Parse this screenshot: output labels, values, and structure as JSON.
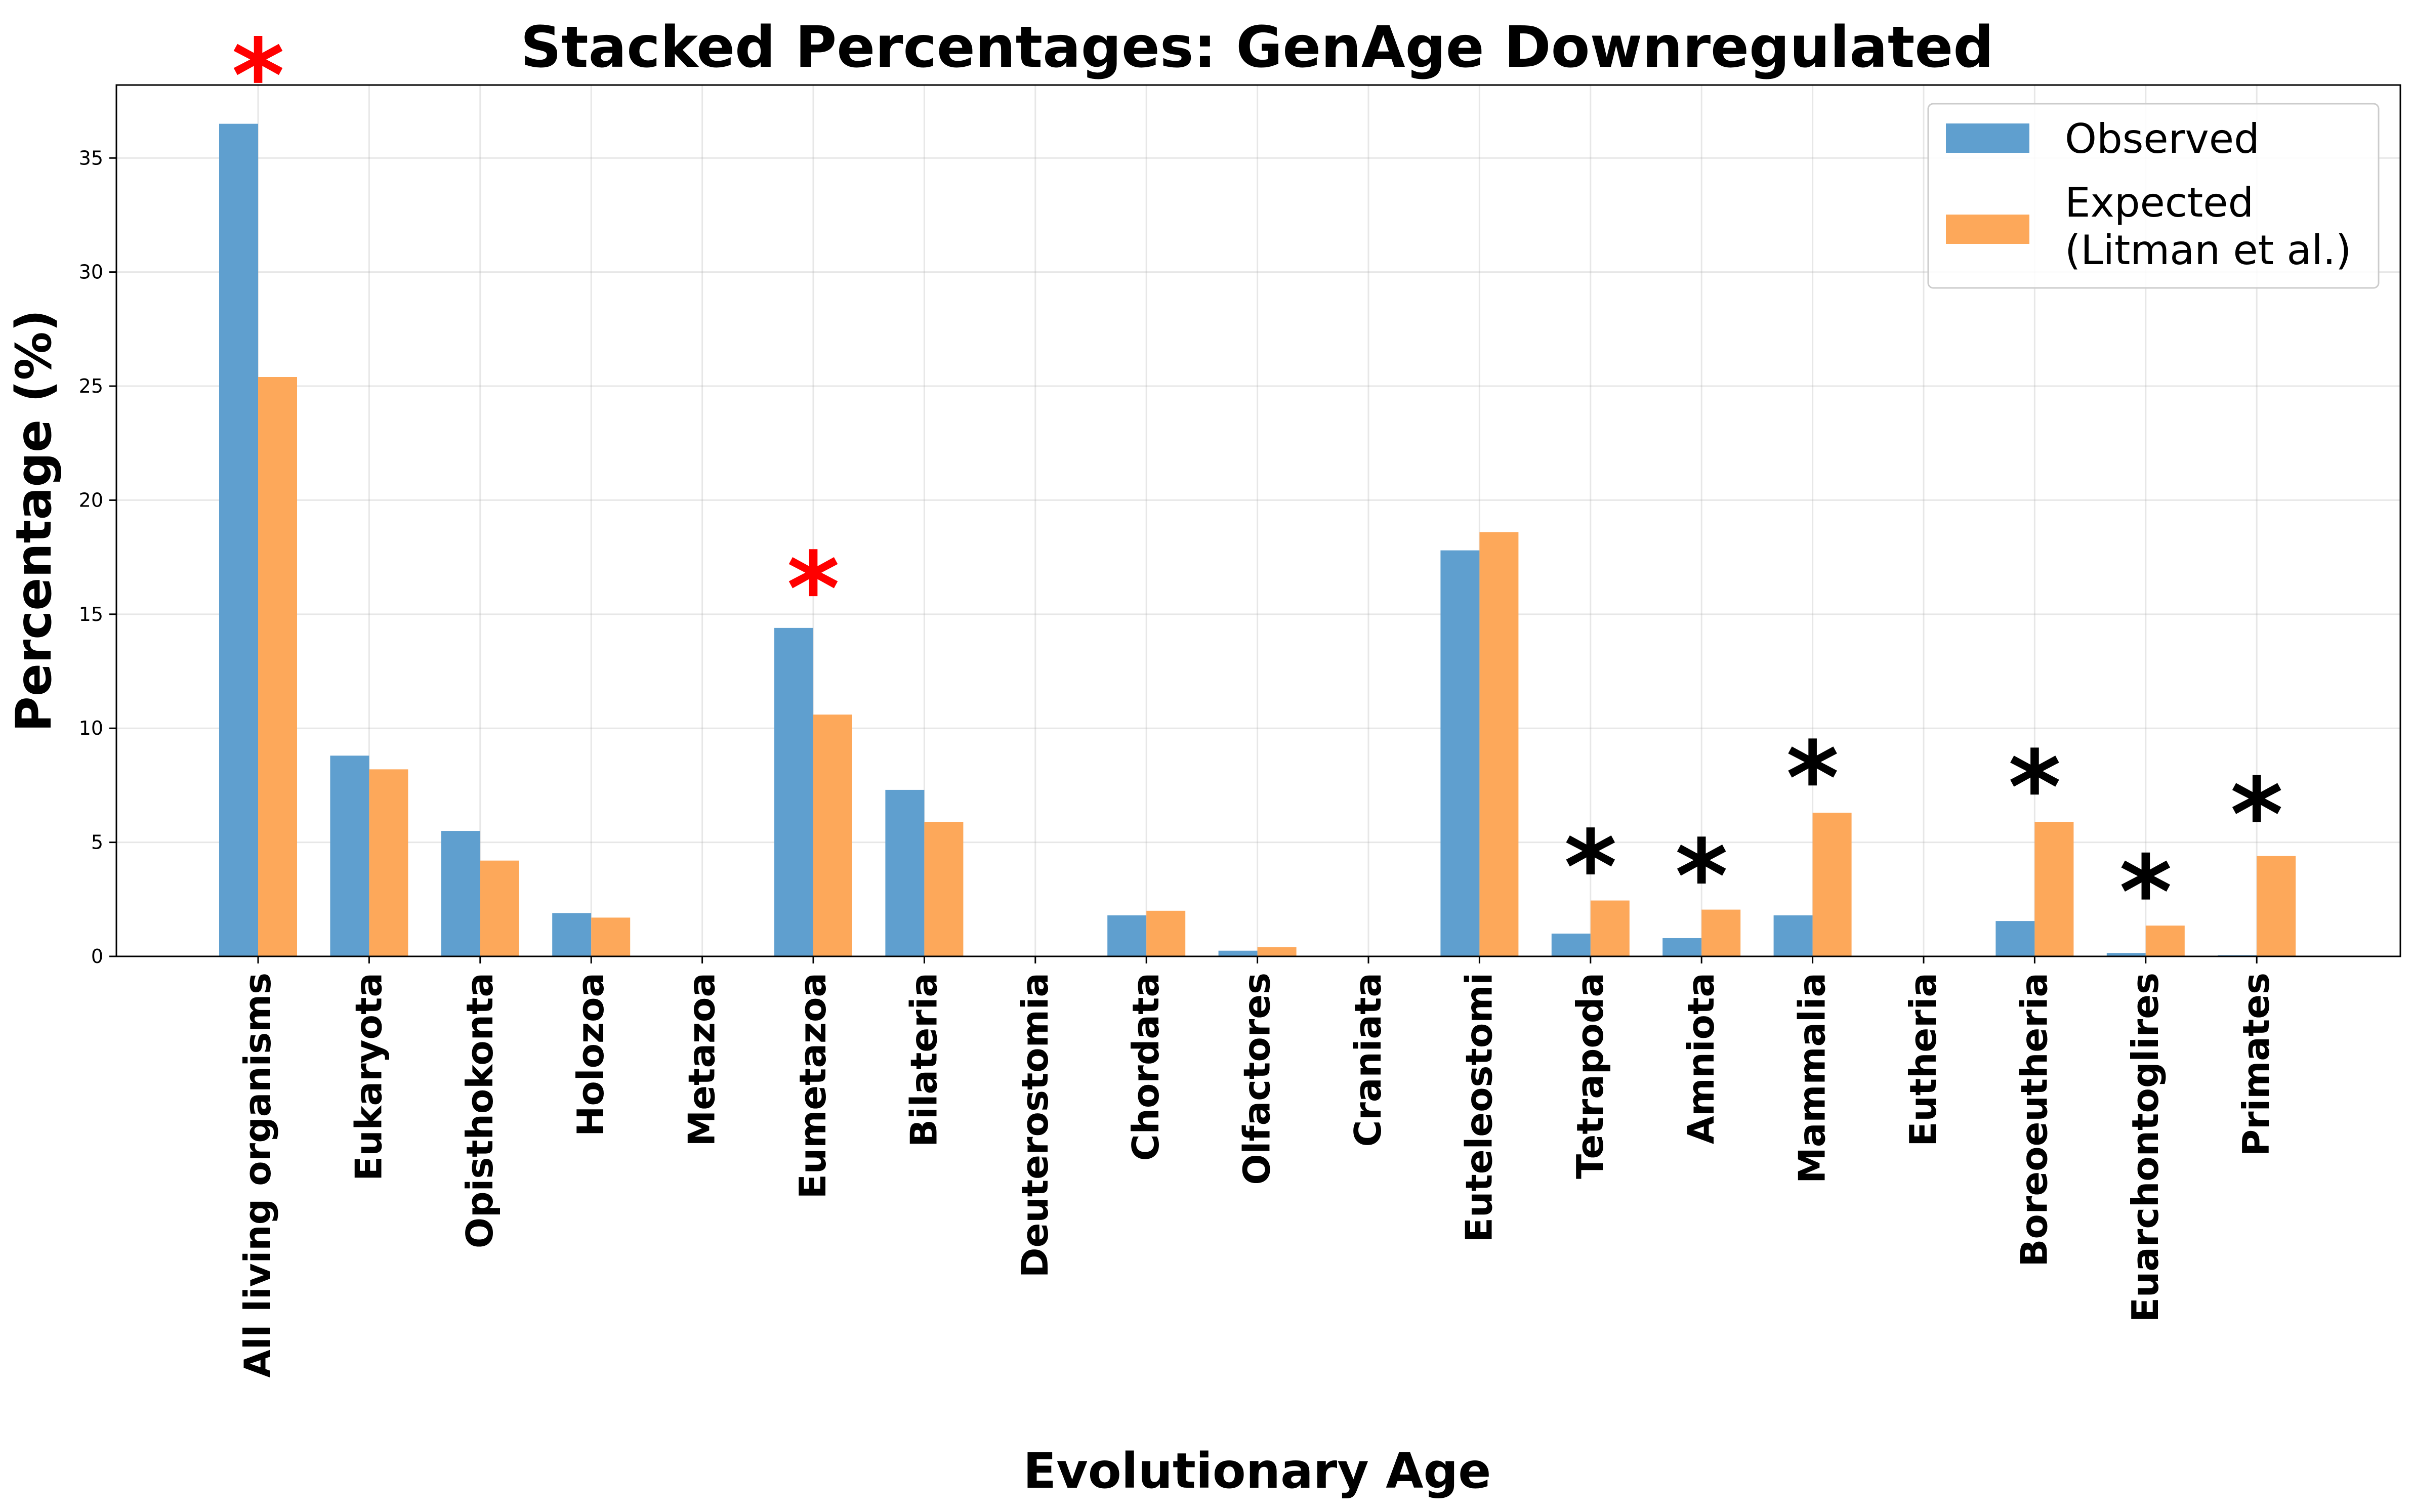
{
  "chart_data": {
    "type": "bar",
    "title": "Stacked Percentages: GenAge Downregulated",
    "xlabel": "Evolutionary Age",
    "ylabel": "Percentage (%)",
    "ylim": [
      0,
      38.2
    ],
    "yticks": [
      "0",
      "5",
      "10",
      "15",
      "20",
      "25",
      "30",
      "35"
    ],
    "grid": true,
    "legend_position": "top-right",
    "categories": [
      "All living organisms",
      "Eukaryota",
      "Opisthokonta",
      "Holozoa",
      "Metazoa",
      "Eumetazoa",
      "Bilateria",
      "Deuterostomia",
      "Chordata",
      "Olfactores",
      "Craniata",
      "Euteleostomi",
      "Tetrapoda",
      "Amniota",
      "Mammalia",
      "Eutheria",
      "Boreoeutheria",
      "Euarchontoglires",
      "Primates"
    ],
    "series": [
      {
        "name": "Observed",
        "color": "#5f9fcf",
        "values": [
          36.5,
          8.8,
          5.5,
          1.9,
          0,
          14.4,
          7.3,
          0,
          1.8,
          0.25,
          0,
          17.8,
          1.0,
          0.8,
          1.8,
          0,
          1.55,
          0.15,
          0.05
        ]
      },
      {
        "name": "Expected\n(Litman et al.)",
        "color": "#fda85a",
        "values": [
          25.4,
          8.2,
          4.2,
          1.7,
          0,
          10.6,
          5.9,
          0,
          2.0,
          0.4,
          0,
          18.6,
          2.45,
          2.05,
          6.3,
          0,
          5.9,
          1.35,
          4.4
        ]
      }
    ],
    "significance": [
      {
        "category_index": 0,
        "symbol": "*",
        "color": "#ff0000",
        "y": 39.5
      },
      {
        "category_index": 5,
        "symbol": "*",
        "color": "#ff0000",
        "y": 17.0
      },
      {
        "category_index": 12,
        "symbol": "*",
        "color": "#000000",
        "y": 4.8
      },
      {
        "category_index": 13,
        "symbol": "*",
        "color": "#000000",
        "y": 4.4
      },
      {
        "category_index": 14,
        "symbol": "*",
        "color": "#000000",
        "y": 8.7
      },
      {
        "category_index": 16,
        "symbol": "*",
        "color": "#000000",
        "y": 8.3
      },
      {
        "category_index": 17,
        "symbol": "*",
        "color": "#000000",
        "y": 3.7
      },
      {
        "category_index": 18,
        "symbol": "*",
        "color": "#000000",
        "y": 7.1
      }
    ]
  }
}
